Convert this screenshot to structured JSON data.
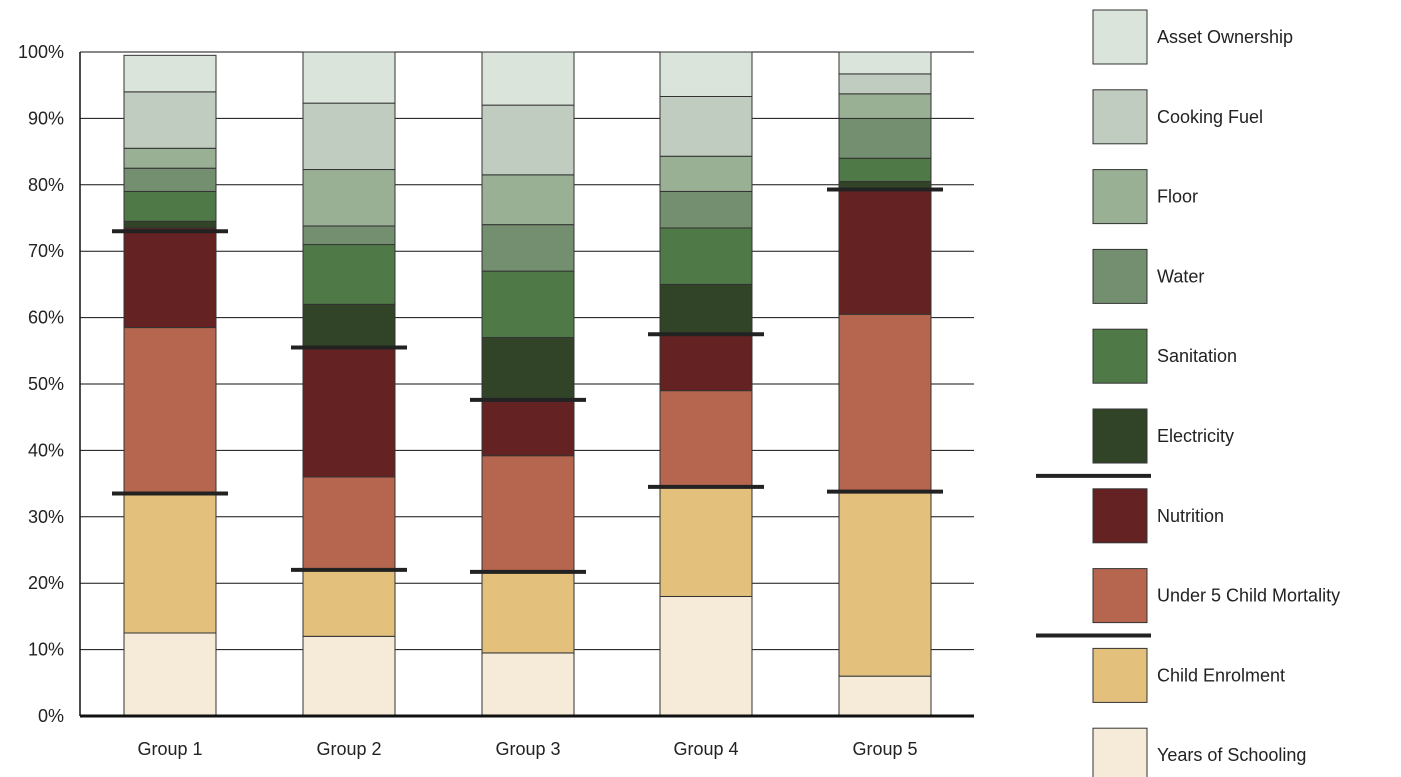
{
  "chart_data": {
    "type": "bar",
    "stacked": true,
    "categories": [
      "Group 1",
      "Group 2",
      "Group 3",
      "Group 4",
      "Group 5"
    ],
    "ylim": [
      0,
      100
    ],
    "y_ticks": [
      "0%",
      "10%",
      "20%",
      "30%",
      "40%",
      "50%",
      "60%",
      "70%",
      "80%",
      "90%",
      "100%"
    ],
    "grid": true,
    "legend_position": "right",
    "series": [
      {
        "name": "Years of Schooling",
        "color": "#F5EBD8",
        "values": [
          12.5,
          12.0,
          9.5,
          18.0,
          6.0
        ]
      },
      {
        "name": "Child Enrolment",
        "color": "#E3C17D",
        "values": [
          21.0,
          10.0,
          12.2,
          16.5,
          28.0
        ]
      },
      {
        "name": "Under 5 Child Mortality",
        "color": "#B6664F",
        "values": [
          25.0,
          14.0,
          17.5,
          14.5,
          26.5
        ]
      },
      {
        "name": "Nutrition",
        "color": "#652222",
        "values": [
          15.0,
          19.5,
          8.2,
          8.5,
          19.0
        ]
      },
      {
        "name": "Electricity",
        "color": "#314428",
        "values": [
          1.0,
          6.5,
          9.6,
          7.5,
          1.0
        ]
      },
      {
        "name": "Sanitation",
        "color": "#4F7A48",
        "values": [
          4.5,
          9.0,
          10.0,
          8.5,
          3.5
        ]
      },
      {
        "name": "Water",
        "color": "#738F70",
        "values": [
          3.5,
          2.8,
          7.0,
          5.5,
          6.0
        ]
      },
      {
        "name": "Floor",
        "color": "#9AB094",
        "values": [
          3.0,
          8.5,
          7.5,
          5.3,
          3.7
        ]
      },
      {
        "name": "Cooking Fuel",
        "color": "#C0CCBF",
        "values": [
          8.5,
          10.0,
          10.5,
          9.0,
          3.0
        ]
      },
      {
        "name": "Asset Ownership",
        "color": "#DBE4DB",
        "values": [
          5.5,
          7.7,
          8.0,
          6.7,
          3.3
        ]
      }
    ],
    "threshold_lines": {
      "color": "#222222",
      "lower": [
        33.5,
        22.0,
        21.7,
        34.5,
        33.8
      ],
      "upper": [
        73.0,
        55.5,
        47.6,
        57.5,
        79.3
      ]
    },
    "legend_dividers_after": [
      "Electricity",
      "Under 5 Child Mortality"
    ]
  }
}
